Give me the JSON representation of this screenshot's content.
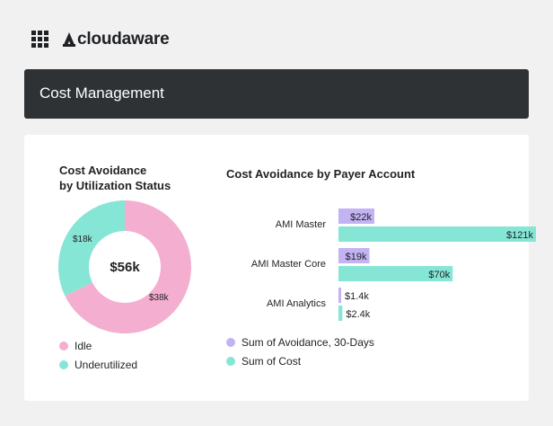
{
  "app": {
    "logo_text": "cloudaware"
  },
  "header": {
    "title": "Cost Management"
  },
  "donut": {
    "title_line1": "Cost Avoidance",
    "title_line2": "by Utilization Status",
    "center_label": "$56k",
    "slices": [
      {
        "name": "Idle",
        "value": 38,
        "label": "$38k",
        "color": "#f4aecf"
      },
      {
        "name": "Underutilized",
        "value": 18,
        "label": "$18k",
        "color": "#86e6d6"
      }
    ],
    "legend": [
      {
        "label": "Idle",
        "color": "#f4aecf"
      },
      {
        "label": "Underutilized",
        "color": "#86e6d6"
      }
    ]
  },
  "bars": {
    "title": "Cost Avoidance by Payer Account",
    "legend": [
      {
        "label": "Sum of Avoidance, 30-Days",
        "color": "#c3b3f3"
      },
      {
        "label": "Sum of Cost",
        "color": "#86e6d6"
      }
    ]
  },
  "chart_data": [
    {
      "type": "pie",
      "title": "Cost Avoidance by Utilization Status",
      "categories": [
        "Idle",
        "Underutilized"
      ],
      "values": [
        38,
        18
      ],
      "value_labels": [
        "$38k",
        "$18k"
      ],
      "center_label": "$56k",
      "colors": [
        "#f4aecf",
        "#86e6d6"
      ]
    },
    {
      "type": "bar",
      "orientation": "horizontal",
      "title": "Cost Avoidance by Payer Account",
      "categories": [
        "AMI Master",
        "AMI Master Core",
        "AMI Analytics"
      ],
      "series": [
        {
          "name": "Sum of Avoidance, 30-Days",
          "values": [
            22,
            19,
            1.4
          ],
          "labels": [
            "$22k",
            "$19k",
            "$1.4k"
          ],
          "color": "#c3b3f3"
        },
        {
          "name": "Sum of Cost",
          "values": [
            121,
            70,
            2.4
          ],
          "labels": [
            "$121k",
            "$70k",
            "$2.4k"
          ],
          "color": "#86e6d6"
        }
      ],
      "xlim": [
        0,
        121
      ],
      "grid": false,
      "legend_placement": "bottom-left"
    }
  ]
}
